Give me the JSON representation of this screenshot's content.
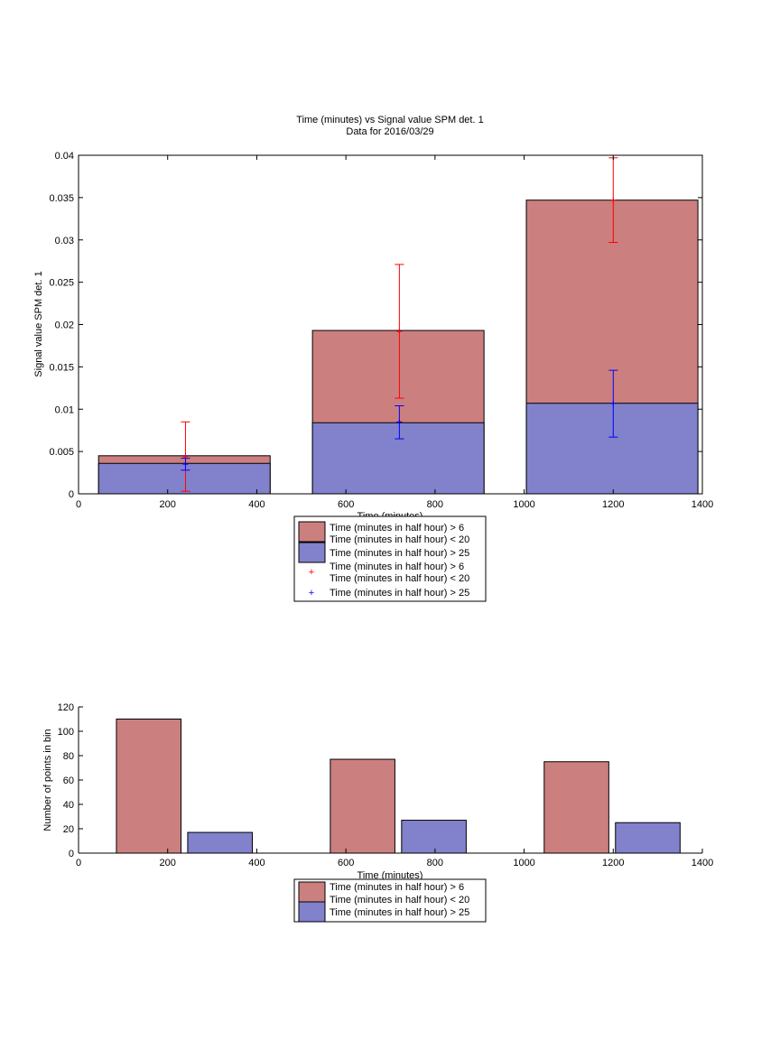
{
  "chart_data": [
    {
      "type": "bar",
      "title": "Time (minutes) vs Signal value SPM det. 1",
      "subtitle": "Data for 2016/03/29",
      "xlabel": "Time (minutes)",
      "ylabel": "Signal value SPM det. 1",
      "xlim": [
        0,
        1400
      ],
      "ylim": [
        0,
        0.04
      ],
      "xticks": [
        "0",
        "200",
        "400",
        "600",
        "800",
        "1000",
        "1200",
        "1400"
      ],
      "yticks": [
        "0",
        "0.005",
        "0.01",
        "0.015",
        "0.02",
        "0.025",
        "0.03",
        "0.035",
        "0.04"
      ],
      "bar_ranges": [
        [
          45,
          430
        ],
        [
          525,
          910
        ],
        [
          1005,
          1390
        ]
      ],
      "series": [
        {
          "name": "Time (minutes in half hour) > 6\nTime (minutes in half hour) < 20",
          "color": "#cc7f7f",
          "values": [
            0.0045,
            0.0193,
            0.0347
          ]
        },
        {
          "name": "Time (minutes in half hour) > 25",
          "color": "#8181cc",
          "values": [
            0.0036,
            0.0084,
            0.0107
          ]
        }
      ],
      "errorbars": [
        {
          "name": "Time (minutes in half hour) > 6\nTime (minutes in half hour) < 20",
          "color": "#ff0000",
          "x": [
            240,
            720,
            1200
          ],
          "center": [
            0.0044,
            0.0192,
            0.0347
          ],
          "low": [
            0.0003,
            0.0113,
            0.0297
          ],
          "high": [
            0.0085,
            0.0271,
            0.0397
          ]
        },
        {
          "name": "Time (minutes in half hour) > 25",
          "color": "#0000ff",
          "x": [
            240,
            720,
            1200
          ],
          "center": [
            0.0035,
            0.0085,
            0.0107
          ],
          "low": [
            0.0028,
            0.0065,
            0.0067
          ],
          "high": [
            0.0042,
            0.0104,
            0.0146
          ]
        }
      ],
      "legend_position": "bottom"
    },
    {
      "type": "bar",
      "title": "",
      "xlabel": "Time (minutes)",
      "ylabel": "Number of points in bin",
      "xlim": [
        0,
        1400
      ],
      "ylim": [
        0,
        120
      ],
      "xticks": [
        "0",
        "200",
        "400",
        "600",
        "800",
        "1000",
        "1200",
        "1400"
      ],
      "yticks": [
        "0",
        "20",
        "40",
        "60",
        "80",
        "100",
        "120"
      ],
      "series": [
        {
          "name": "Time (minutes in half hour) > 6\nTime (minutes in half hour) < 20",
          "color": "#cc7f7f",
          "x_ranges": [
            [
              85,
              230
            ],
            [
              565,
              710
            ],
            [
              1045,
              1190
            ]
          ],
          "values": [
            110,
            77,
            75
          ]
        },
        {
          "name": "Time (minutes in half hour) > 25",
          "color": "#8181cc",
          "x_ranges": [
            [
              245,
              390
            ],
            [
              725,
              870
            ],
            [
              1205,
              1350
            ]
          ],
          "values": [
            17,
            27,
            25
          ]
        }
      ],
      "legend_position": "bottom"
    }
  ]
}
